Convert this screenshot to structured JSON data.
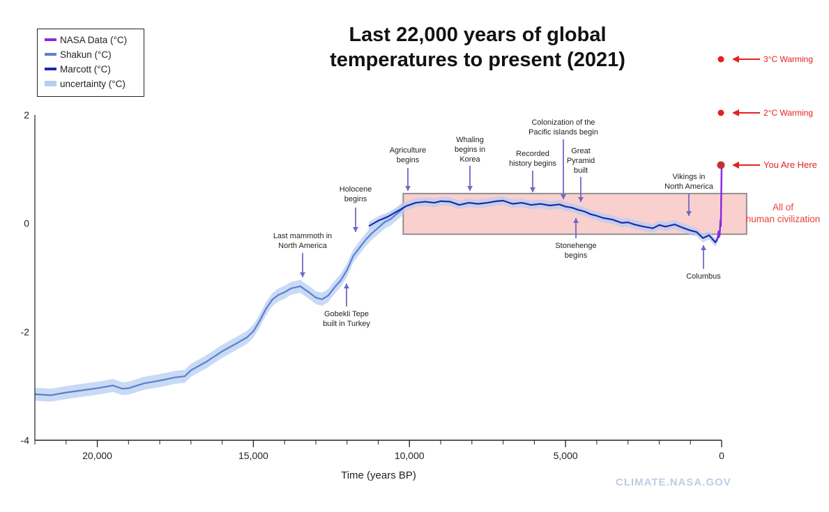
{
  "title": {
    "line1": "Last 22,000 years of global",
    "line2": "temperatures to present (2021)"
  },
  "legend": [
    {
      "label": "NASA Data (°C)",
      "color": "#8a2be2",
      "style": "solid"
    },
    {
      "label": "Shakun (°C)",
      "color": "#5b7fd0",
      "style": "solid"
    },
    {
      "label": "Marcott (°C)",
      "color": "#1a2aa8",
      "style": "solid"
    },
    {
      "label": "uncertainty (°C)",
      "color": "#b7cdf0",
      "style": "band"
    }
  ],
  "watermark": "CLIMATE.NASA.GOV",
  "chart_data": {
    "type": "line",
    "xlabel": "Time (years BP)",
    "ylabel": "",
    "xlim": [
      22000,
      0
    ],
    "ylim": [
      -4,
      2
    ],
    "x_ticks": [
      {
        "value": 20000,
        "label": "20,000"
      },
      {
        "value": 15000,
        "label": "15,000"
      },
      {
        "value": 10000,
        "label": "10,000"
      },
      {
        "value": 5000,
        "label": "5,000"
      },
      {
        "value": 0,
        "label": "0"
      }
    ],
    "y_ticks": [
      {
        "value": 2,
        "label": "2"
      },
      {
        "value": 0,
        "label": "0"
      },
      {
        "value": -2,
        "label": "-2"
      },
      {
        "value": -4,
        "label": "-4"
      }
    ],
    "series": [
      {
        "name": "Shakun (°C)",
        "color": "#5b7fd0",
        "uncertainty": 0.12,
        "x": [
          22000,
          21500,
          21000,
          20500,
          20000,
          19500,
          19200,
          19000,
          18500,
          18000,
          17500,
          17200,
          17000,
          16500,
          16000,
          15500,
          15200,
          15000,
          14800,
          14600,
          14400,
          14200,
          14000,
          13800,
          13500,
          13200,
          13000,
          12800,
          12600,
          12400,
          12200,
          12000,
          11800,
          11600,
          11400,
          11200,
          11000,
          10800,
          10600,
          10400,
          10200
        ],
        "y": [
          -3.15,
          -3.17,
          -3.12,
          -3.08,
          -3.04,
          -2.99,
          -3.05,
          -3.04,
          -2.95,
          -2.9,
          -2.84,
          -2.82,
          -2.71,
          -2.55,
          -2.36,
          -2.2,
          -2.1,
          -1.99,
          -1.8,
          -1.58,
          -1.41,
          -1.32,
          -1.27,
          -1.2,
          -1.16,
          -1.28,
          -1.37,
          -1.4,
          -1.33,
          -1.18,
          -1.05,
          -0.86,
          -0.6,
          -0.45,
          -0.3,
          -0.18,
          -0.08,
          0.02,
          0.08,
          0.18,
          0.28
        ]
      },
      {
        "name": "Marcott (°C)",
        "color": "#1a2aa8",
        "uncertainty": 0.08,
        "x": [
          11300,
          11000,
          10700,
          10400,
          10100,
          9800,
          9500,
          9200,
          9000,
          8700,
          8400,
          8100,
          7800,
          7500,
          7200,
          7000,
          6700,
          6400,
          6100,
          5800,
          5500,
          5200,
          5000,
          4800,
          4600,
          4400,
          4200,
          4000,
          3800,
          3500,
          3200,
          3000,
          2800,
          2500,
          2200,
          2000,
          1800,
          1500,
          1200,
          1000,
          800,
          600,
          400,
          200,
          100
        ],
        "y": [
          -0.05,
          0.05,
          0.12,
          0.22,
          0.32,
          0.38,
          0.4,
          0.38,
          0.41,
          0.4,
          0.34,
          0.38,
          0.36,
          0.38,
          0.41,
          0.42,
          0.36,
          0.38,
          0.34,
          0.36,
          0.33,
          0.35,
          0.31,
          0.29,
          0.25,
          0.22,
          0.17,
          0.14,
          0.1,
          0.07,
          0.01,
          0.02,
          -0.02,
          -0.06,
          -0.09,
          -0.03,
          -0.06,
          -0.02,
          -0.09,
          -0.13,
          -0.16,
          -0.27,
          -0.22,
          -0.35,
          -0.25
        ]
      },
      {
        "name": "NASA Data (°C)",
        "color": "#8a2be2",
        "uncertainty": 0,
        "x": [
          140,
          120,
          100,
          80,
          60,
          40,
          25,
          10,
          0
        ],
        "y": [
          -0.3,
          -0.25,
          -0.15,
          -0.25,
          -0.2,
          0.05,
          -0.05,
          0.6,
          1.05
        ]
      }
    ],
    "annotations": [
      {
        "text": "Last mammoth in North America",
        "x": 13300,
        "direction": "down"
      },
      {
        "text": "Holocene begins",
        "x": 11700,
        "direction": "down"
      },
      {
        "text": "Gobekli Tepe built in Turkey",
        "x": 12000,
        "direction": "up"
      },
      {
        "text": "Agriculture begins",
        "x": 10000,
        "direction": "down"
      },
      {
        "text": "Whaling begins in Korea",
        "x": 8000,
        "direction": "down"
      },
      {
        "text": "Recorded history begins",
        "x": 6000,
        "direction": "down"
      },
      {
        "text": "Colonization of the Pacific islands begin",
        "x": 5000,
        "direction": "down"
      },
      {
        "text": "Great Pyramid built",
        "x": 4500,
        "direction": "down"
      },
      {
        "text": "Stonehenge begins",
        "x": 4800,
        "direction": "up"
      },
      {
        "text": "Vikings in North America",
        "x": 1000,
        "direction": "down"
      },
      {
        "text": "Columbus",
        "x": 500,
        "direction": "up"
      }
    ],
    "highlight_region": {
      "x_start": 10200,
      "x_end": -800,
      "y_low": -0.2,
      "y_high": 0.55,
      "label": "All of human civilization",
      "color": "#f8c8c4"
    },
    "markers": [
      {
        "label": "3°C Warming",
        "x": 0,
        "y": 3
      },
      {
        "label": "2°C Warming",
        "x": 0,
        "y": 2
      },
      {
        "label": "You Are Here",
        "x": 0,
        "y": 1.05
      }
    ]
  }
}
